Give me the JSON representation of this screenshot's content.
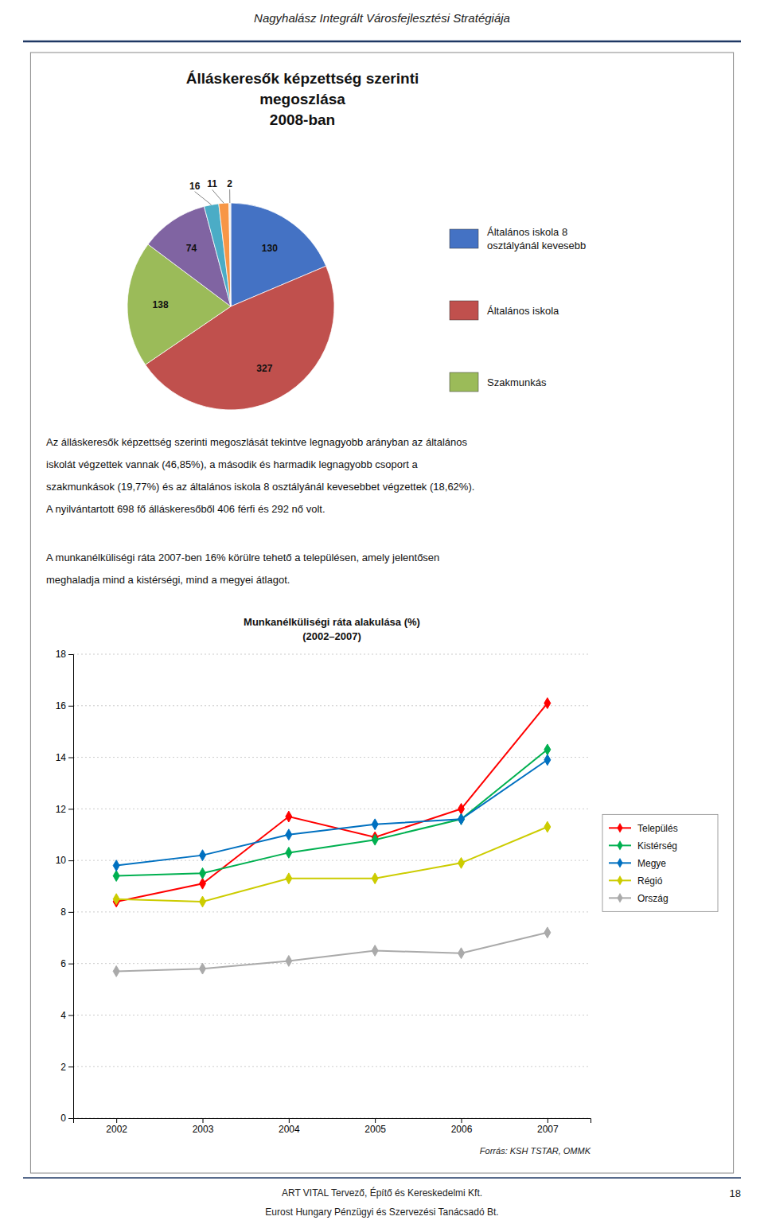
{
  "page_title": "Nagyhalász Integrált Városfejlesztési Stratégiája",
  "paragraphs": [
    [
      "Az álláskeresők képzettség szerinti megoszlását tekintve legnagyobb arányban az általános",
      "iskolát végzettek vannak (46,85%), a második és harmadik legnagyobb csoport a",
      "szakmunkások (19,77%) és az általános iskola 8 osztályánál kevesebbet végzettek (18,62%).",
      "A nyilvántartott 698 fő álláskeresőből 406 férfi és 292 nő volt."
    ],
    [
      "A munkanélküliségi ráta 2007-ben 16% körülre tehető a településen, amely jelentősen",
      "meghaladja mind a kistérségi, mind a megyei átlagot."
    ]
  ],
  "footer": [
    "ART VITAL Tervező, Építő és Kereskedelmi Kft.",
    "Eurost Hungary Pénzügyi és Szervezési Tanácsadó Bt."
  ],
  "page_number": "18",
  "rule_color": "#1F3864",
  "chart_data": [
    {
      "type": "pie",
      "title": "Álláskeresők képzettség szerinti\nmegoszlása\n2008-ban",
      "categories": [
        "Általános iskola 8\nosztályánál kevesebb",
        "Általános iskola",
        "Szakmunkás",
        null,
        null,
        null,
        null
      ],
      "values": [
        130,
        327,
        138,
        74,
        16,
        11,
        2
      ],
      "colors": [
        "#4472C4",
        "#C0504D",
        "#9BBB59",
        "#8064A2",
        "#4BACC6",
        "#F79646",
        "#EEEEEE"
      ],
      "data_labels": true,
      "legend": "right"
    },
    {
      "type": "line",
      "title": "Munkanélküliségi ráta alakulása (%)",
      "subtitle": "(2002–2007)",
      "x": [
        2002,
        2003,
        2004,
        2005,
        2006,
        2007
      ],
      "series": [
        {
          "name": "Település",
          "color": "#FF0000",
          "values": [
            8.4,
            9.1,
            11.7,
            10.9,
            12.0,
            16.1
          ]
        },
        {
          "name": "Kistérség",
          "color": "#00B050",
          "values": [
            9.4,
            9.5,
            10.3,
            10.8,
            11.6,
            14.3
          ]
        },
        {
          "name": "Megye",
          "color": "#0070C0",
          "values": [
            9.8,
            10.2,
            11.0,
            11.4,
            11.6,
            13.9
          ]
        },
        {
          "name": "Régió",
          "color": "#CCCC00",
          "values": [
            8.5,
            8.4,
            9.3,
            9.3,
            9.9,
            11.3
          ]
        },
        {
          "name": "Ország",
          "color": "#AAAAAA",
          "values": [
            5.7,
            5.8,
            6.1,
            6.5,
            6.4,
            7.2
          ]
        }
      ],
      "xlim": [
        2001.5,
        2007.5
      ],
      "xticks": [
        2002,
        2003,
        2004,
        2005,
        2006,
        2007
      ],
      "ylim": [
        0,
        18
      ],
      "yticks": [
        0,
        2,
        4,
        6,
        8,
        10,
        12,
        14,
        16,
        18
      ],
      "grid": "y",
      "legend": "right",
      "marker": "diamond",
      "annotations": [
        "Forrás: KSH TSTAR, OMMK"
      ]
    }
  ]
}
